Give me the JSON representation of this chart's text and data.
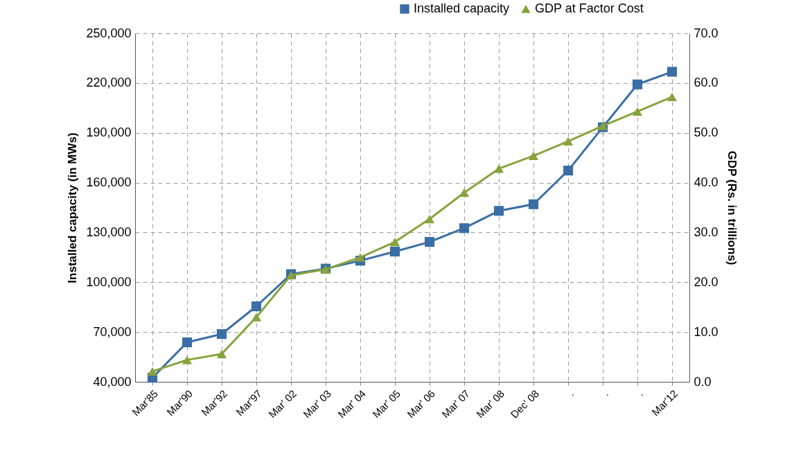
{
  "chart_data": {
    "type": "line",
    "categories": [
      "Mar'85",
      "Mar'90",
      "Mar'92",
      "Mar'97",
      "Mar' 02",
      "Mar' 03",
      "Mar' 04",
      "Mar' 05",
      "Mar' 06",
      "Mar' 07",
      "Mar' 08",
      "Dec' 08",
      ".",
      ".",
      ".",
      "Mar'12"
    ],
    "series": [
      {
        "name": "Installed capacity",
        "color": "#3a6ea5",
        "marker": "square",
        "values": [
          42500,
          63800,
          68800,
          85500,
          104900,
          108200,
          113000,
          118500,
          124300,
          132600,
          143000,
          147000,
          167300,
          193400,
          219200,
          226800
        ]
      },
      {
        "name": "GDP at Factor Cost",
        "color": "#86a33c",
        "marker": "triangle",
        "axis": "y2",
        "values": [
          2.1,
          4.4,
          5.6,
          13.0,
          21.4,
          22.6,
          25.0,
          28.1,
          32.7,
          38.0,
          42.8,
          45.4,
          48.3,
          51.4,
          54.3,
          57.2
        ]
      }
    ],
    "ylabel": "Installed capacity  (in MWs)",
    "y2label": "GDP  (Rs. in trillions)",
    "ylim": [
      40000,
      250000
    ],
    "yticks": [
      {
        "value": 40000,
        "label": "40,000"
      },
      {
        "value": 70000,
        "label": "70,000"
      },
      {
        "value": 100000,
        "label": "100,000"
      },
      {
        "value": 130000,
        "label": "130,000"
      },
      {
        "value": 160000,
        "label": "160,000"
      },
      {
        "value": 190000,
        "label": "190,000"
      },
      {
        "value": 220000,
        "label": "220,000"
      },
      {
        "value": 250000,
        "label": "250,000"
      }
    ],
    "y2lim": [
      0,
      70
    ],
    "y2ticks": [
      {
        "value": 0,
        "label": "0.0"
      },
      {
        "value": 10,
        "label": "10.0"
      },
      {
        "value": 20,
        "label": "20.0"
      },
      {
        "value": 30,
        "label": "30.0"
      },
      {
        "value": 40,
        "label": "40.0"
      },
      {
        "value": 50,
        "label": "50.0"
      },
      {
        "value": 60,
        "label": "60.0"
      },
      {
        "value": 70,
        "label": "70.0"
      }
    ],
    "grid": true,
    "legend": "top right",
    "line_style": "solid"
  }
}
